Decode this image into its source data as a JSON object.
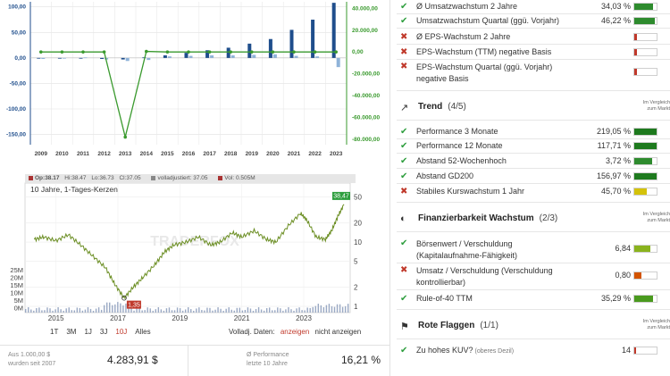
{
  "bar_chart": {
    "chart_data": {
      "type": "bar",
      "categories": [
        "2009",
        "2010",
        "2011",
        "2012",
        "2013",
        "2014",
        "2015",
        "2016",
        "2017",
        "2018",
        "2019",
        "2020",
        "2021",
        "2022",
        "2023"
      ],
      "series": [
        {
          "values": [
            0,
            0,
            0,
            -2,
            -3,
            1,
            5,
            10,
            15,
            20,
            28,
            37,
            55,
            75,
            108
          ]
        },
        {
          "values": [
            -2,
            -1,
            1,
            -3,
            -6,
            -4,
            3,
            4,
            5,
            5,
            6,
            7,
            4,
            3,
            -18
          ]
        },
        {
          "values": [
            0,
            0,
            0,
            -1,
            -78000,
            500,
            0,
            0,
            0,
            0,
            0,
            0,
            0,
            0,
            0
          ]
        }
      ],
      "left_axis": {
        "ticks": [
          "100,00",
          "50,00",
          "0,00",
          "-50,00",
          "-100,00",
          "-150,00"
        ],
        "ylim": [
          -170,
          110
        ]
      },
      "right_axis": {
        "ticks": [
          "40.000,00",
          "20.000,00",
          "0,00",
          "-20.000,00",
          "-40.000,00",
          "-60.000,00",
          "-80.000,00"
        ],
        "ylim": [
          -85000,
          46000
        ]
      },
      "grid": true,
      "colors": {
        "bars_dark": "#1f4e8c",
        "bars_light": "#8fb3d9",
        "line": "#3a9a2e",
        "left_tick": "#1f4e8c",
        "right_tick": "#3a9a2e"
      }
    }
  },
  "price_chart": {
    "info": {
      "op": "Op:38.17",
      "hi": "Hi:38.47",
      "lo": "Lo:36.73",
      "cl": "Cl:37.05",
      "adjusted": "volladjustiert: 37.05",
      "vol": "Vol: 0.505M"
    },
    "title": "10 Jahre, 1-Tages-Kerzen",
    "watermark": "TRADERFOX",
    "chart_data": {
      "type": "line",
      "x_labels": [
        "2015",
        "2017",
        "2019",
        "2021",
        "2023"
      ],
      "y_ticks_right": [
        "50",
        "20",
        "10",
        "5",
        "2",
        "1"
      ],
      "volume_ticks": [
        "25M",
        "20M",
        "15M",
        "10M",
        "5M",
        "0M"
      ],
      "scale": "log",
      "ylim": [
        1,
        50
      ],
      "last_price_label": "38,47",
      "low_label": "1,35",
      "points": [
        [
          2014.3,
          11
        ],
        [
          2014.6,
          12
        ],
        [
          2015.0,
          10.5
        ],
        [
          2015.4,
          13
        ],
        [
          2015.8,
          9
        ],
        [
          2016.2,
          6
        ],
        [
          2016.6,
          4
        ],
        [
          2016.9,
          2.2
        ],
        [
          2017.2,
          1.35
        ],
        [
          2017.5,
          2
        ],
        [
          2017.8,
          2.8
        ],
        [
          2018.2,
          4.5
        ],
        [
          2018.5,
          7
        ],
        [
          2018.8,
          9
        ],
        [
          2019.2,
          10
        ],
        [
          2019.6,
          12
        ],
        [
          2020.0,
          9
        ],
        [
          2020.3,
          10
        ],
        [
          2020.7,
          14
        ],
        [
          2021.0,
          12
        ],
        [
          2021.4,
          15
        ],
        [
          2021.8,
          11
        ],
        [
          2022.1,
          10
        ],
        [
          2022.5,
          18
        ],
        [
          2022.9,
          28
        ],
        [
          2023.1,
          22
        ],
        [
          2023.4,
          12
        ],
        [
          2023.7,
          11
        ],
        [
          2023.9,
          15
        ],
        [
          2024.1,
          25
        ],
        [
          2024.3,
          38.47
        ]
      ],
      "colors": {
        "line": "#6b8e23",
        "low_badge": "#c0392b",
        "last_badge": "#2e9e3e"
      }
    }
  },
  "controls": {
    "ranges": [
      "1T",
      "3M",
      "1J",
      "3J",
      "10J",
      "Alles"
    ],
    "active_range": "10J",
    "volume_label": "Volladj. Daten:",
    "show": "anzeigen",
    "hide": "nicht anzeigen"
  },
  "bottom": {
    "invest_label_1": "Aus 1.000,00 $",
    "invest_label_2": "wurden seit 2007",
    "invest_value": "4.283,91 $",
    "perf_label_1": "Ø Performance",
    "perf_label_2": "letzte 10 Jahre",
    "perf_value": "16,21 %"
  },
  "growth_rows": [
    {
      "label": "Ø Umsatzwachstum 2 Jahre",
      "value": "34,03 %",
      "status": "ok",
      "fill": 0.85,
      "color": "#2e8b2e"
    },
    {
      "label": "Umsatzwachstum Quartal (ggü. Vorjahr)",
      "value": "46,22 %",
      "status": "ok",
      "fill": 0.9,
      "color": "#2e8b2e"
    },
    {
      "label": "Ø EPS-Wachstum 2 Jahre",
      "value": "",
      "status": "bad",
      "fill": 0.1,
      "color": "#c0392b"
    },
    {
      "label": "EPS-Wachstum (TTM) negative Basis",
      "value": "",
      "status": "bad",
      "fill": 0.1,
      "color": "#c0392b"
    },
    {
      "label_1": "EPS-Wachstum Quartal (ggü. Vorjahr)",
      "label_2": "negative Basis",
      "value": "",
      "status": "bad",
      "fill": 0.1,
      "color": "#c0392b"
    }
  ],
  "trend": {
    "title": "Trend",
    "count": "(4/5)",
    "compare_1": "Im Vergleich",
    "compare_2": "zum Markt",
    "rows": [
      {
        "label": "Performance 3 Monate",
        "value": "219,05 %",
        "status": "ok",
        "fill": 1.0,
        "color": "#1e7a1e"
      },
      {
        "label": "Performance 12 Monate",
        "value": "117,71 %",
        "status": "ok",
        "fill": 1.0,
        "color": "#1e7a1e"
      },
      {
        "label": "Abstand 52-Wochenhoch",
        "value": "3,72 %",
        "status": "ok",
        "fill": 0.8,
        "color": "#2e8b2e"
      },
      {
        "label": "Abstand GD200",
        "value": "156,97 %",
        "status": "ok",
        "fill": 1.0,
        "color": "#1e7a1e"
      },
      {
        "label": "Stabiles Kurswachstum 1 Jahr",
        "value": "45,70 %",
        "status": "bad",
        "fill": 0.55,
        "color": "#d4c20a"
      }
    ]
  },
  "finance": {
    "title": "Finanzierbarkeit Wachstum",
    "count": "(2/3)",
    "compare_1": "Im Vergleich",
    "compare_2": "zum Markt",
    "rows": [
      {
        "label_1": "Börsenwert / Verschuldung",
        "label_2": "(Kapitalaufnahme-Fähigkeit)",
        "value": "6,84",
        "status": "ok",
        "fill": 0.7,
        "color": "#8ab31e"
      },
      {
        "label_1": "Umsatz / Verschuldung (Verschuldung",
        "label_2": "kontrollierbar)",
        "value": "0,80",
        "status": "bad",
        "fill": 0.3,
        "color": "#d35400"
      },
      {
        "label": "Rule-of-40 TTM",
        "value": "35,29 %",
        "status": "ok",
        "fill": 0.85,
        "color": "#4a9a1e"
      }
    ]
  },
  "red_flags": {
    "title": "Rote Flaggen",
    "count": "(1/1)",
    "compare_1": "Im Vergleich",
    "compare_2": "zum Markt",
    "rows": [
      {
        "label": "Zu hohes KUV?",
        "sub": "(oberes Dezil)",
        "value": "14",
        "status": "ok",
        "fill": 0.08,
        "color": "#c0392b"
      }
    ]
  }
}
